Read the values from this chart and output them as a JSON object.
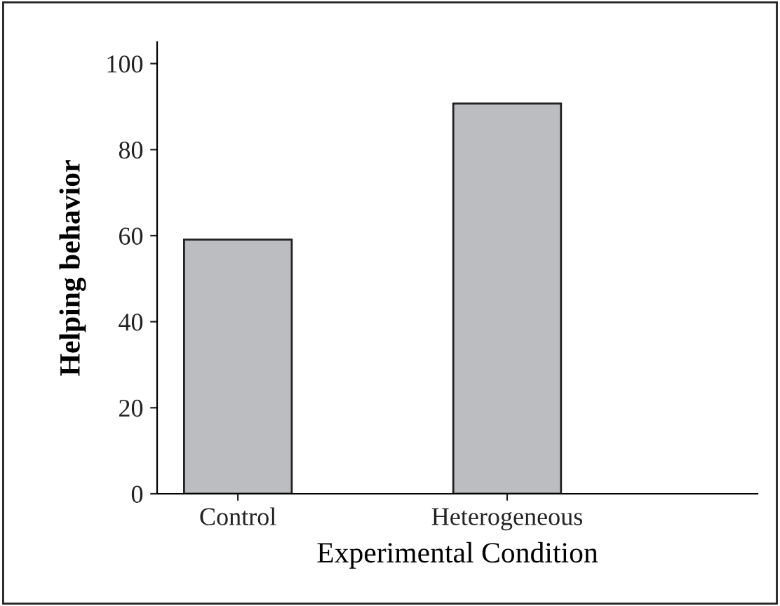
{
  "chart_data": {
    "type": "bar",
    "xlabel": "Experimental Condition",
    "ylabel": "Helping behavior",
    "categories": [
      "Control",
      "Heterogeneous"
    ],
    "values": [
      59.1,
      90.7
    ],
    "color": "#bcbdc1",
    "ylim": [
      0,
      105
    ],
    "yticks": [
      0,
      20,
      40,
      60,
      80,
      100
    ],
    "grid": false,
    "legend": false
  }
}
